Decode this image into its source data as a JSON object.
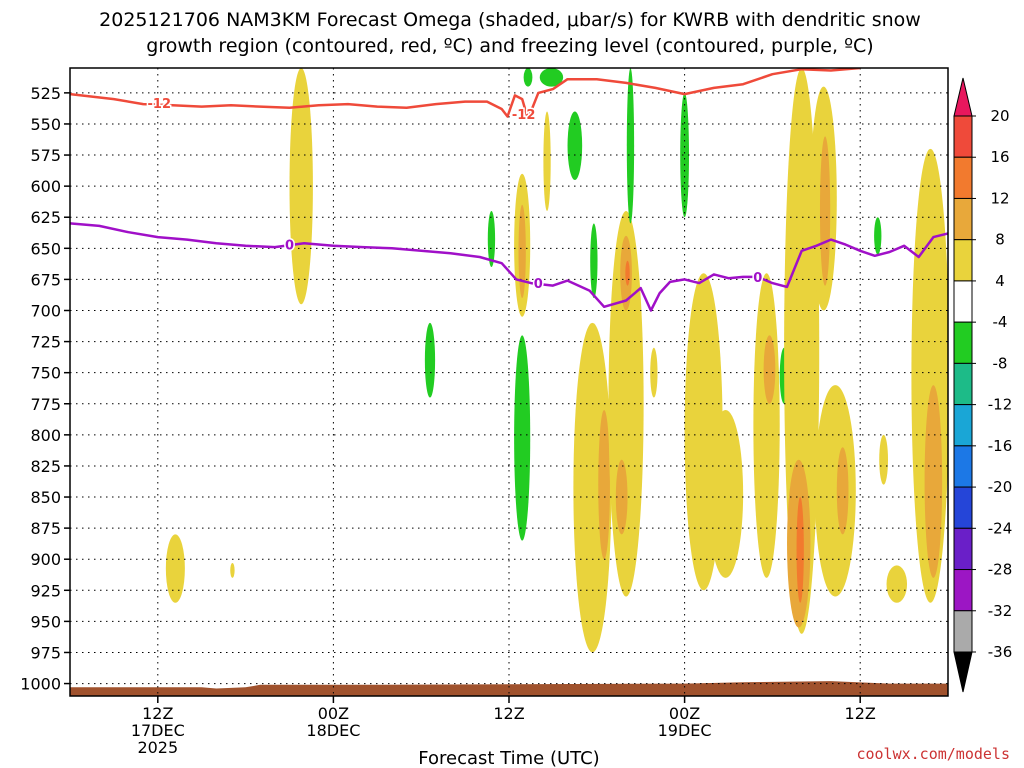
{
  "chart_data": {
    "type": "heatmap",
    "title_lines": [
      "2025121706 NAM3KM Forecast Omega (shaded, μbar/s) for KWRB with dendritic snow",
      "growth region (contoured, red, ºC) and freezing level (contoured, purple, ºC)"
    ],
    "xlabel": "Forecast Time (UTC)",
    "credit": "coolwx.com/models",
    "y_ticks": [
      525,
      550,
      575,
      600,
      625,
      650,
      675,
      700,
      725,
      750,
      775,
      800,
      825,
      850,
      875,
      900,
      925,
      950,
      975,
      1000
    ],
    "y_range": [
      505,
      1010
    ],
    "x_range_hours": [
      0,
      60
    ],
    "x_ticks": [
      {
        "hour": 6,
        "lines": [
          "12Z",
          "17DEC",
          "2025"
        ]
      },
      {
        "hour": 18,
        "lines": [
          "00Z",
          "18DEC"
        ]
      },
      {
        "hour": 30,
        "lines": [
          "12Z"
        ]
      },
      {
        "hour": 42,
        "lines": [
          "00Z",
          "19DEC"
        ]
      },
      {
        "hour": 54,
        "lines": [
          "12Z"
        ]
      }
    ],
    "colorbar": {
      "labels": [
        "20",
        "16",
        "12",
        "8",
        "4",
        "-4",
        "-8",
        "-12",
        "-16",
        "-20",
        "-24",
        "-28",
        "-32",
        "-36"
      ],
      "colors_top_to_bottom": [
        "#e8175d",
        "#ef4a3a",
        "#f27a2e",
        "#e8a83a",
        "#e9d33c",
        "#ffffff",
        "#22cc22",
        "#1dbb88",
        "#1aa6d6",
        "#1c78e6",
        "#2545d8",
        "#6a1fc8",
        "#9c16c4",
        "#aaaaaa",
        "#000000"
      ]
    },
    "dgz_isotherm_c": -12,
    "dgz_line": [
      [
        0,
        526
      ],
      [
        3,
        530
      ],
      [
        5,
        534
      ],
      [
        7,
        535
      ],
      [
        9,
        536
      ],
      [
        11,
        535
      ],
      [
        13,
        536
      ],
      [
        15,
        537
      ],
      [
        17,
        535
      ],
      [
        19,
        534
      ],
      [
        21,
        536
      ],
      [
        23,
        537
      ],
      [
        25,
        534
      ],
      [
        27,
        532
      ],
      [
        28.5,
        532
      ],
      [
        29.5,
        538
      ],
      [
        29.9,
        544
      ],
      [
        30.4,
        527
      ],
      [
        30.9,
        530
      ],
      [
        31.3,
        546
      ],
      [
        32,
        525
      ],
      [
        33,
        522
      ],
      [
        34,
        514
      ],
      [
        36,
        514
      ],
      [
        38,
        517
      ],
      [
        40,
        521
      ],
      [
        42,
        526
      ],
      [
        44,
        521
      ],
      [
        46,
        518
      ],
      [
        48,
        510
      ],
      [
        50,
        506
      ],
      [
        52,
        507
      ],
      [
        54,
        505
      ]
    ],
    "freezing_level_c": 0,
    "freezing_line": [
      [
        0,
        630
      ],
      [
        2,
        632
      ],
      [
        4,
        637
      ],
      [
        6,
        641
      ],
      [
        8,
        643
      ],
      [
        10,
        646
      ],
      [
        12,
        648
      ],
      [
        14,
        649
      ],
      [
        16,
        646
      ],
      [
        18,
        648
      ],
      [
        20,
        649
      ],
      [
        22,
        650
      ],
      [
        24,
        652
      ],
      [
        26,
        654
      ],
      [
        28,
        657
      ],
      [
        29.5,
        662
      ],
      [
        30.5,
        675
      ],
      [
        31.5,
        678
      ],
      [
        33,
        680
      ],
      [
        34,
        676
      ],
      [
        35.5,
        684
      ],
      [
        36.5,
        697
      ],
      [
        38,
        692
      ],
      [
        39,
        682
      ],
      [
        39.7,
        700
      ],
      [
        40.3,
        686
      ],
      [
        41,
        677
      ],
      [
        42,
        675
      ],
      [
        43,
        678
      ],
      [
        44,
        671
      ],
      [
        45,
        674
      ],
      [
        46,
        673
      ],
      [
        47,
        673
      ],
      [
        48,
        678
      ],
      [
        49,
        681
      ],
      [
        50,
        652
      ],
      [
        51,
        648
      ],
      [
        52,
        643
      ],
      [
        53,
        647
      ],
      [
        54,
        652
      ],
      [
        55,
        656
      ],
      [
        56,
        653
      ],
      [
        57,
        648
      ],
      [
        58,
        657
      ],
      [
        59,
        641
      ],
      [
        60,
        638
      ]
    ],
    "contour_labels": [
      {
        "text": "-12",
        "hour": 6.1,
        "level": 533,
        "color": "#ef4a3a"
      },
      {
        "text": "-12",
        "hour": 31.0,
        "level": 542,
        "color": "#ef4a3a"
      },
      {
        "text": "0",
        "hour": 15.0,
        "level": 647,
        "color": "#a010c8"
      },
      {
        "text": "0",
        "hour": 32.0,
        "level": 678,
        "color": "#a010c8"
      },
      {
        "text": "0",
        "hour": 47.0,
        "level": 673,
        "color": "#a010c8"
      }
    ],
    "omega_regions": [
      {
        "hour": 15.8,
        "top": 505,
        "bottom": 695,
        "half_width": 0.8,
        "value": 5
      },
      {
        "hour": 24.6,
        "top": 710,
        "bottom": 770,
        "half_width": 0.35,
        "value": -6
      },
      {
        "hour": 28.8,
        "top": 620,
        "bottom": 665,
        "half_width": 0.25,
        "value": -6
      },
      {
        "hour": 30.9,
        "top": 590,
        "bottom": 705,
        "half_width": 0.55,
        "value": 5
      },
      {
        "hour": 30.9,
        "top": 615,
        "bottom": 690,
        "half_width": 0.25,
        "value": 8
      },
      {
        "hour": 30.9,
        "top": 720,
        "bottom": 885,
        "half_width": 0.55,
        "value": -6
      },
      {
        "hour": 31.3,
        "top": 505,
        "bottom": 520,
        "half_width": 0.3,
        "value": -6
      },
      {
        "hour": 32.9,
        "top": 505,
        "bottom": 520,
        "half_width": 0.8,
        "value": -6
      },
      {
        "hour": 32.6,
        "top": 540,
        "bottom": 620,
        "half_width": 0.25,
        "value": 5
      },
      {
        "hour": 34.5,
        "top": 540,
        "bottom": 595,
        "half_width": 0.5,
        "value": -6
      },
      {
        "hour": 35.8,
        "top": 630,
        "bottom": 690,
        "half_width": 0.25,
        "value": -6
      },
      {
        "hour": 35.7,
        "top": 710,
        "bottom": 975,
        "half_width": 1.3,
        "value": 5
      },
      {
        "hour": 36.5,
        "top": 780,
        "bottom": 900,
        "half_width": 0.4,
        "value": 8
      },
      {
        "hour": 38.0,
        "top": 620,
        "bottom": 930,
        "half_width": 1.2,
        "value": 5
      },
      {
        "hour": 38.0,
        "top": 640,
        "bottom": 700,
        "half_width": 0.4,
        "value": 8
      },
      {
        "hour": 38.1,
        "top": 660,
        "bottom": 680,
        "half_width": 0.15,
        "value": 12
      },
      {
        "hour": 37.7,
        "top": 820,
        "bottom": 880,
        "half_width": 0.4,
        "value": 8
      },
      {
        "hour": 38.3,
        "top": 505,
        "bottom": 630,
        "half_width": 0.25,
        "value": -6
      },
      {
        "hour": 39.9,
        "top": 730,
        "bottom": 770,
        "half_width": 0.25,
        "value": 5
      },
      {
        "hour": 42.0,
        "top": 525,
        "bottom": 625,
        "half_width": 0.3,
        "value": -6
      },
      {
        "hour": 43.3,
        "top": 670,
        "bottom": 925,
        "half_width": 1.3,
        "value": 5
      },
      {
        "hour": 44.8,
        "top": 780,
        "bottom": 915,
        "half_width": 1.2,
        "value": 5
      },
      {
        "hour": 47.6,
        "top": 670,
        "bottom": 915,
        "half_width": 0.9,
        "value": 5
      },
      {
        "hour": 47.8,
        "top": 720,
        "bottom": 775,
        "half_width": 0.4,
        "value": 8
      },
      {
        "hour": 48.8,
        "top": 730,
        "bottom": 775,
        "half_width": 0.3,
        "value": -6
      },
      {
        "hour": 50.0,
        "top": 505,
        "bottom": 960,
        "half_width": 1.2,
        "value": 5
      },
      {
        "hour": 49.8,
        "top": 820,
        "bottom": 955,
        "half_width": 0.8,
        "value": 8
      },
      {
        "hour": 49.9,
        "top": 850,
        "bottom": 935,
        "half_width": 0.25,
        "value": 12
      },
      {
        "hour": 51.5,
        "top": 520,
        "bottom": 700,
        "half_width": 0.9,
        "value": 5
      },
      {
        "hour": 51.6,
        "top": 560,
        "bottom": 680,
        "half_width": 0.35,
        "value": 8
      },
      {
        "hour": 52.3,
        "top": 760,
        "bottom": 930,
        "half_width": 1.4,
        "value": 5
      },
      {
        "hour": 52.8,
        "top": 810,
        "bottom": 880,
        "half_width": 0.4,
        "value": 8
      },
      {
        "hour": 55.2,
        "top": 625,
        "bottom": 655,
        "half_width": 0.25,
        "value": -6
      },
      {
        "hour": 55.6,
        "top": 800,
        "bottom": 840,
        "half_width": 0.3,
        "value": 5
      },
      {
        "hour": 56.5,
        "top": 905,
        "bottom": 935,
        "half_width": 0.7,
        "value": 5
      },
      {
        "hour": 58.8,
        "top": 570,
        "bottom": 935,
        "half_width": 1.3,
        "value": 5
      },
      {
        "hour": 59.0,
        "top": 760,
        "bottom": 915,
        "half_width": 0.6,
        "value": 8
      },
      {
        "hour": 7.2,
        "top": 880,
        "bottom": 935,
        "half_width": 0.65,
        "value": 5
      },
      {
        "hour": 11.1,
        "top": 903,
        "bottom": 915,
        "half_width": 0.15,
        "value": 5
      }
    ],
    "terrain_color": "#a0522d"
  }
}
